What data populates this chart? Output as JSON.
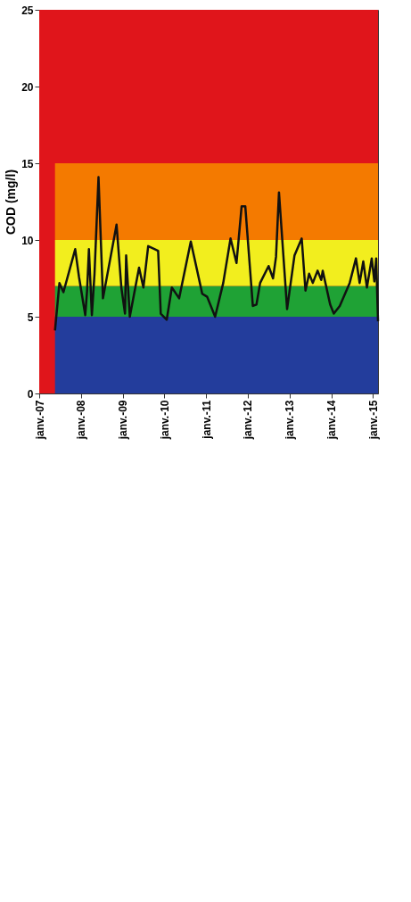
{
  "chart_data": {
    "type": "line",
    "ylabel": "COD (mg/l)",
    "xlim": [
      "2007-01-01",
      "2015-02-14"
    ],
    "xticks": [
      {
        "value": "2007-01-01",
        "label": "janv.-07"
      },
      {
        "value": "2008-01-01",
        "label": "janv.-08"
      },
      {
        "value": "2009-01-01",
        "label": "janv.-09"
      },
      {
        "value": "2010-01-01",
        "label": "janv.-10"
      },
      {
        "value": "2011-01-01",
        "label": "janv.-11"
      },
      {
        "value": "2012-01-01",
        "label": "janv.-12"
      },
      {
        "value": "2013-01-01",
        "label": "janv.-13"
      },
      {
        "value": "2014-01-01",
        "label": "janv.-14"
      },
      {
        "value": "2015-01-01",
        "label": "janv.-15"
      }
    ],
    "ylim": [
      0,
      25
    ],
    "yticks": [
      0,
      5,
      10,
      15,
      20,
      25
    ],
    "grid": false,
    "legend": false,
    "stacked": true,
    "bands": [
      {
        "axis": "y",
        "from": 0,
        "to": 25,
        "color": "#e0151b"
      }
    ],
    "series": [
      {
        "type": "area",
        "color": "#233d9c",
        "x": [
          "2007-05-19",
          "2015-02-14"
        ],
        "values": [
          5,
          5
        ]
      },
      {
        "type": "area",
        "color": "#1fa235",
        "x": [
          "2007-05-19",
          "2015-02-14"
        ],
        "values": [
          2,
          2
        ]
      },
      {
        "type": "area",
        "color": "#f2ee1e",
        "x": [
          "2007-05-19",
          "2015-02-14"
        ],
        "values": [
          3,
          3
        ]
      },
      {
        "type": "area",
        "color": "#f47a00",
        "x": [
          "2007-05-19",
          "2015-02-14"
        ],
        "values": [
          5,
          5
        ]
      },
      {
        "color": "#111111",
        "x": [
          "2007-05-19",
          "2007-06-27",
          "2007-08-01",
          "2007-11-12",
          "2007-12-15",
          "2008-02-08",
          "2008-02-24",
          "2008-03-11",
          "2008-04-06",
          "2008-04-29",
          "2008-06-03",
          "2008-07-12",
          "2008-11-08",
          "2008-12-20",
          "2009-01-21",
          "2009-01-31",
          "2009-03-04",
          "2009-05-24",
          "2009-07-01",
          "2009-08-12",
          "2009-11-07",
          "2009-11-30",
          "2010-01-21",
          "2010-03-07",
          "2010-05-10",
          "2010-08-20",
          "2010-11-28",
          "2011-01-10",
          "2011-03-21",
          "2011-05-31",
          "2011-08-03",
          "2011-09-24",
          "2011-11-08",
          "2011-12-10",
          "2012-02-14",
          "2012-03-17",
          "2012-04-18",
          "2012-07-01",
          "2012-08-09",
          "2012-09-04",
          "2012-09-30",
          "2012-12-10",
          "2013-02-13",
          "2013-04-17",
          "2013-05-20",
          "2013-06-21",
          "2013-07-23",
          "2013-09-03",
          "2013-10-05",
          "2013-10-18",
          "2013-12-22",
          "2014-01-23",
          "2014-03-16",
          "2014-06-11",
          "2014-08-05",
          "2014-09-06",
          "2014-10-08",
          "2014-11-09",
          "2014-12-21",
          "2015-01-13",
          "2015-01-29",
          "2015-02-14"
        ],
        "values": [
          4.1,
          7.2,
          6.6,
          9.4,
          7.6,
          5.1,
          6.7,
          9.4,
          5.1,
          7.8,
          14.1,
          6.2,
          11.0,
          6.9,
          5.2,
          9.0,
          5.0,
          8.2,
          6.9,
          9.6,
          9.3,
          5.2,
          4.8,
          6.9,
          6.2,
          9.9,
          6.5,
          6.3,
          5.0,
          7.2,
          10.1,
          8.5,
          12.2,
          12.2,
          5.7,
          5.8,
          7.2,
          8.3,
          7.5,
          8.9,
          13.1,
          5.5,
          9.0,
          10.1,
          6.7,
          7.8,
          7.2,
          8.0,
          7.4,
          8.0,
          5.8,
          5.2,
          5.7,
          7.2,
          8.8,
          7.2,
          8.6,
          6.9,
          8.8,
          7.3,
          8.8,
          4.7
        ]
      }
    ]
  }
}
